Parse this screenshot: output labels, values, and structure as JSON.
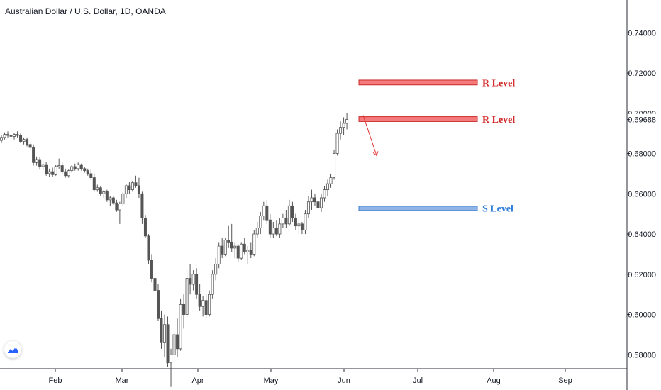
{
  "header": {
    "title": "Australian Dollar / U.S. Dollar, 1D, OANDA"
  },
  "colors": {
    "candle_body_down": "#555555",
    "candle_body_up": "#ffffff",
    "candle_outline": "#555555",
    "resistance_fill": "#f47b7b",
    "resistance_stroke": "#cc2a2a",
    "resistance_text": "#d22b2b",
    "support_fill": "#8fb4e6",
    "support_stroke": "#3f7fcf",
    "support_text": "#2f7ed8",
    "arrow": "#e03030",
    "axis_line": "#2a2e39",
    "axis_text": "#131722",
    "logo_accent": "#2962ff"
  },
  "chart_data": {
    "type": "candlestick",
    "symbol": "Australian Dollar / U.S. Dollar",
    "interval": "1D",
    "source": "OANDA",
    "ylim": [
      0.5625,
      0.7563
    ],
    "y_ticks": [
      "0.74000",
      "0.72000",
      "0.70000",
      "0.68000",
      "0.66000",
      "0.64000",
      "0.62000",
      "0.60000",
      "0.58000"
    ],
    "last_price": "0.69688",
    "x_ticks": [
      "Feb",
      "Mar",
      "Apr",
      "May",
      "Jun",
      "Jul",
      "Aug",
      "Sep"
    ],
    "candles_ohlc": [
      [
        0.6865,
        0.689,
        0.6855,
        0.688
      ],
      [
        0.688,
        0.6905,
        0.687,
        0.6895
      ],
      [
        0.6895,
        0.691,
        0.688,
        0.689
      ],
      [
        0.689,
        0.6905,
        0.687,
        0.6885
      ],
      [
        0.6885,
        0.69,
        0.687,
        0.6895
      ],
      [
        0.6895,
        0.691,
        0.688,
        0.689
      ],
      [
        0.689,
        0.69,
        0.6855,
        0.686
      ],
      [
        0.686,
        0.688,
        0.6845,
        0.687
      ],
      [
        0.687,
        0.688,
        0.6835,
        0.6845
      ],
      [
        0.6845,
        0.686,
        0.682,
        0.683
      ],
      [
        0.683,
        0.6845,
        0.674,
        0.6755
      ],
      [
        0.6755,
        0.6785,
        0.674,
        0.677
      ],
      [
        0.677,
        0.678,
        0.672,
        0.6735
      ],
      [
        0.6735,
        0.6755,
        0.6715,
        0.6745
      ],
      [
        0.6745,
        0.676,
        0.669,
        0.67
      ],
      [
        0.67,
        0.6725,
        0.6685,
        0.671
      ],
      [
        0.671,
        0.673,
        0.6685,
        0.6695
      ],
      [
        0.6695,
        0.6745,
        0.669,
        0.6735
      ],
      [
        0.6735,
        0.6775,
        0.6725,
        0.674
      ],
      [
        0.674,
        0.6755,
        0.67,
        0.671
      ],
      [
        0.671,
        0.6725,
        0.668,
        0.669
      ],
      [
        0.669,
        0.672,
        0.668,
        0.6715
      ],
      [
        0.6715,
        0.6745,
        0.6705,
        0.6735
      ],
      [
        0.6735,
        0.675,
        0.6715,
        0.6725
      ],
      [
        0.6725,
        0.6755,
        0.6715,
        0.6745
      ],
      [
        0.6745,
        0.675,
        0.6715,
        0.6725
      ],
      [
        0.6725,
        0.6735,
        0.6705,
        0.6715
      ],
      [
        0.6715,
        0.6725,
        0.669,
        0.67
      ],
      [
        0.67,
        0.672,
        0.667,
        0.668
      ],
      [
        0.668,
        0.67,
        0.661,
        0.662
      ],
      [
        0.662,
        0.6645,
        0.661,
        0.663
      ],
      [
        0.663,
        0.664,
        0.659,
        0.66
      ],
      [
        0.66,
        0.662,
        0.658,
        0.661
      ],
      [
        0.661,
        0.662,
        0.656,
        0.657
      ],
      [
        0.657,
        0.659,
        0.654,
        0.658
      ],
      [
        0.658,
        0.659,
        0.6545,
        0.6555
      ],
      [
        0.6555,
        0.657,
        0.651,
        0.652
      ],
      [
        0.652,
        0.656,
        0.645,
        0.655
      ],
      [
        0.655,
        0.661,
        0.654,
        0.66
      ],
      [
        0.66,
        0.665,
        0.658,
        0.664
      ],
      [
        0.664,
        0.666,
        0.66,
        0.662
      ],
      [
        0.662,
        0.6665,
        0.661,
        0.6655
      ],
      [
        0.6655,
        0.669,
        0.663,
        0.664
      ],
      [
        0.664,
        0.668,
        0.658,
        0.66
      ],
      [
        0.66,
        0.661,
        0.645,
        0.648
      ],
      [
        0.648,
        0.6495,
        0.638,
        0.639
      ],
      [
        0.639,
        0.64,
        0.625,
        0.627
      ],
      [
        0.627,
        0.63,
        0.616,
        0.618
      ],
      [
        0.618,
        0.624,
        0.61,
        0.612
      ],
      [
        0.612,
        0.615,
        0.597,
        0.598
      ],
      [
        0.598,
        0.602,
        0.583,
        0.586
      ],
      [
        0.586,
        0.6,
        0.579,
        0.595
      ],
      [
        0.595,
        0.599,
        0.574,
        0.576
      ],
      [
        0.576,
        0.583,
        0.564,
        0.58
      ],
      [
        0.58,
        0.592,
        0.576,
        0.59
      ],
      [
        0.59,
        0.598,
        0.579,
        0.583
      ],
      [
        0.583,
        0.608,
        0.582,
        0.605
      ],
      [
        0.605,
        0.61,
        0.593,
        0.6
      ],
      [
        0.6,
        0.622,
        0.598,
        0.618
      ],
      [
        0.618,
        0.625,
        0.61,
        0.615
      ],
      [
        0.615,
        0.622,
        0.612,
        0.62
      ],
      [
        0.62,
        0.623,
        0.608,
        0.61
      ],
      [
        0.61,
        0.615,
        0.602,
        0.604
      ],
      [
        0.604,
        0.609,
        0.599,
        0.607
      ],
      [
        0.607,
        0.61,
        0.598,
        0.6
      ],
      [
        0.6,
        0.612,
        0.599,
        0.61
      ],
      [
        0.61,
        0.622,
        0.608,
        0.62
      ],
      [
        0.62,
        0.628,
        0.617,
        0.625
      ],
      [
        0.625,
        0.636,
        0.623,
        0.634
      ],
      [
        0.634,
        0.638,
        0.628,
        0.63
      ],
      [
        0.63,
        0.638,
        0.629,
        0.637
      ],
      [
        0.637,
        0.644,
        0.633,
        0.636
      ],
      [
        0.636,
        0.645,
        0.631,
        0.633
      ],
      [
        0.633,
        0.636,
        0.628,
        0.634
      ],
      [
        0.634,
        0.635,
        0.626,
        0.628
      ],
      [
        0.628,
        0.636,
        0.627,
        0.635
      ],
      [
        0.635,
        0.638,
        0.63,
        0.631
      ],
      [
        0.631,
        0.634,
        0.625,
        0.632
      ],
      [
        0.632,
        0.636,
        0.628,
        0.63
      ],
      [
        0.63,
        0.642,
        0.629,
        0.64
      ],
      [
        0.64,
        0.646,
        0.638,
        0.643
      ],
      [
        0.643,
        0.651,
        0.64,
        0.649
      ],
      [
        0.649,
        0.656,
        0.647,
        0.654
      ],
      [
        0.654,
        0.657,
        0.645,
        0.647
      ],
      [
        0.647,
        0.65,
        0.638,
        0.64
      ],
      [
        0.64,
        0.646,
        0.638,
        0.643
      ],
      [
        0.643,
        0.647,
        0.639,
        0.64
      ],
      [
        0.64,
        0.648,
        0.638,
        0.645
      ],
      [
        0.645,
        0.65,
        0.643,
        0.648
      ],
      [
        0.648,
        0.652,
        0.643,
        0.645
      ],
      [
        0.645,
        0.657,
        0.644,
        0.654
      ],
      [
        0.654,
        0.656,
        0.646,
        0.648
      ],
      [
        0.648,
        0.65,
        0.642,
        0.644
      ],
      [
        0.644,
        0.647,
        0.64,
        0.645
      ],
      [
        0.645,
        0.646,
        0.64,
        0.642
      ],
      [
        0.642,
        0.652,
        0.64,
        0.65
      ],
      [
        0.65,
        0.659,
        0.648,
        0.656
      ],
      [
        0.656,
        0.662,
        0.652,
        0.658
      ],
      [
        0.658,
        0.66,
        0.654,
        0.656
      ],
      [
        0.656,
        0.658,
        0.651,
        0.653
      ],
      [
        0.653,
        0.66,
        0.651,
        0.658
      ],
      [
        0.658,
        0.664,
        0.656,
        0.662
      ],
      [
        0.662,
        0.667,
        0.659,
        0.665
      ],
      [
        0.665,
        0.67,
        0.663,
        0.668
      ],
      [
        0.668,
        0.682,
        0.667,
        0.68
      ],
      [
        0.68,
        0.692,
        0.679,
        0.69
      ],
      [
        0.69,
        0.696,
        0.687,
        0.693
      ],
      [
        0.693,
        0.698,
        0.689,
        0.695
      ],
      [
        0.695,
        0.7,
        0.692,
        0.6969
      ]
    ],
    "annotations": [
      {
        "label": "R Level",
        "type": "resistance",
        "price_low": 0.7141,
        "price_high": 0.7165
      },
      {
        "label": "R Level",
        "type": "resistance",
        "price_low": 0.6959,
        "price_high": 0.6983
      },
      {
        "label": "S Level",
        "type": "support",
        "price_low": 0.6518,
        "price_high": 0.6538
      }
    ],
    "arrow": {
      "from_price": 0.699,
      "to_price": 0.679,
      "direction": "down"
    }
  }
}
